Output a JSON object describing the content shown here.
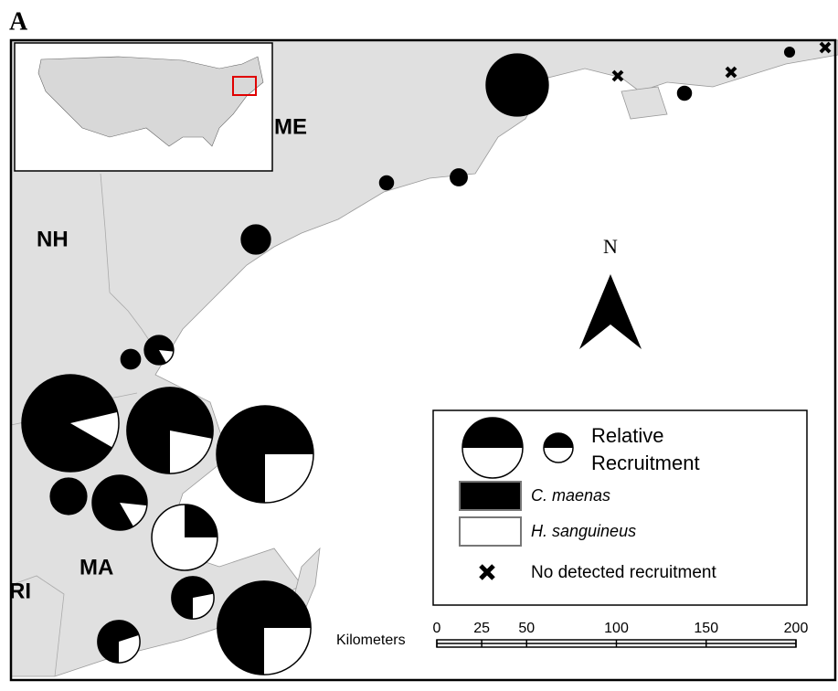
{
  "panel_label": "A",
  "states": [
    "ME",
    "NH",
    "MA",
    "RI"
  ],
  "north_label": "N",
  "legend": {
    "size_label": "Relative Recruitment",
    "c_maenas": "C. maenas",
    "h_sanguineus": "H. sanguineus",
    "no_recruitment": "No detected recruitment"
  },
  "scale": {
    "label": "Kilometers",
    "ticks": [
      0,
      25,
      50,
      100,
      150,
      200
    ]
  },
  "sites": {
    "c_maenas_pct": [
      100,
      100,
      100,
      100,
      100,
      100,
      100,
      85,
      88,
      78,
      75,
      100,
      85,
      25,
      72,
      75,
      70
    ],
    "recruitment": [
      41,
      1,
      2,
      2,
      3,
      9,
      4,
      9,
      100,
      79,
      100,
      14,
      32,
      46,
      19,
      93,
      19
    ]
  }
}
